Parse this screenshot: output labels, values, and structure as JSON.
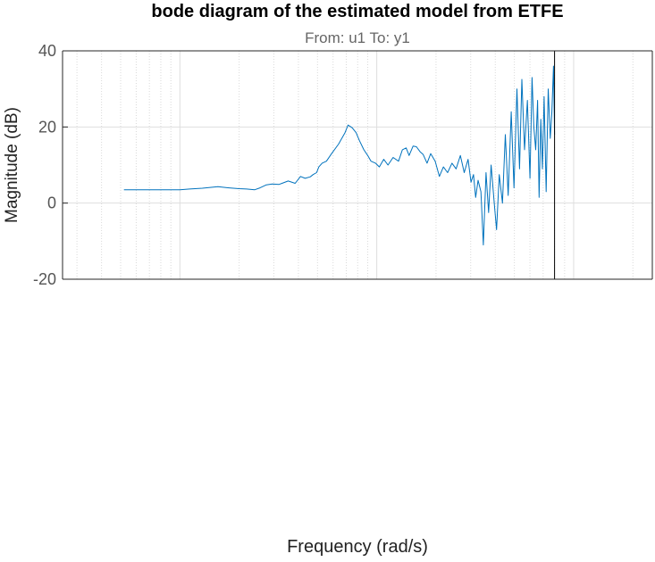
{
  "chart_data": {
    "type": "line",
    "title": "bode diagram of the estimated model from ETFE",
    "subtitle": "From: u1  To: y1",
    "xlabel": "Frequency  (rad/s)",
    "ylabel": "Magnitude (dB)",
    "xscale": "log",
    "xlim": [
      0.2535,
      251
    ],
    "ylim": [
      -20,
      40
    ],
    "yticks": [
      -20,
      0,
      20,
      40
    ],
    "ytick_labels": [
      "-20",
      "0",
      "20",
      "40"
    ],
    "grid": true,
    "nyquist_frequency": 80,
    "series": [
      {
        "color": "#0072BD",
        "x": [
          0.52,
          0.7,
          0.85,
          1.0,
          1.12,
          1.3,
          1.56,
          1.78,
          2.0,
          2.18,
          2.4,
          2.55,
          2.75,
          2.95,
          3.18,
          3.3,
          3.55,
          3.85,
          4.1,
          4.33,
          4.6,
          4.75,
          4.95,
          5.08,
          5.28,
          5.55,
          5.9,
          6.4,
          6.9,
          7.15,
          7.5,
          7.85,
          8.15,
          8.6,
          9.0,
          9.35,
          9.85,
          10.3,
          10.85,
          11.4,
          12.1,
          12.9,
          13.5,
          14.1,
          14.6,
          15.3,
          15.9,
          16.6,
          17.2,
          18.0,
          18.8,
          19.8,
          20.8,
          21.8,
          22.9,
          24.1,
          25.3,
          26.6,
          27.8,
          29.1,
          30.1,
          31.0,
          31.8,
          32.7,
          33.8,
          34.8,
          35.9,
          37.0,
          38.1,
          39.5,
          40.6,
          41.9,
          43.5,
          45.0,
          46.5,
          48.2,
          49.8,
          51.5,
          53.1,
          54.6,
          56.3,
          58.2,
          60.0,
          61.5,
          62.8,
          64.2,
          65.6,
          66.8,
          68.1,
          69.4,
          70.8,
          72.5,
          74.3,
          76.1,
          77.5,
          79.0,
          80.0
        ],
        "y": [
          3.5,
          3.5,
          3.5,
          3.5,
          3.7,
          3.9,
          4.3,
          4.0,
          3.8,
          3.7,
          3.5,
          4.0,
          4.8,
          5.0,
          4.9,
          5.2,
          5.8,
          5.2,
          7.0,
          6.5,
          6.9,
          7.5,
          8.0,
          9.5,
          10.5,
          11.0,
          13.0,
          15.5,
          18.5,
          20.5,
          19.8,
          18.5,
          16.5,
          14.0,
          12.5,
          11.0,
          10.5,
          9.5,
          11.5,
          10.0,
          12.0,
          11.0,
          14.0,
          14.5,
          12.5,
          15.0,
          14.8,
          13.5,
          12.8,
          10.5,
          13.0,
          11.0,
          7.0,
          9.5,
          8.0,
          10.5,
          9.0,
          12.5,
          8.0,
          11.5,
          5.5,
          7.5,
          1.5,
          6.0,
          3.0,
          -11.0,
          8.0,
          -2.5,
          10.0,
          0.0,
          -7.0,
          7.5,
          0.0,
          18.0,
          2.0,
          24.0,
          4.0,
          30.0,
          9.0,
          32.5,
          14.0,
          27.0,
          6.5,
          33.0,
          20.0,
          14.0,
          27.0,
          1.5,
          22.0,
          9.0,
          28.0,
          3.0,
          30.0,
          17.0,
          24.0,
          36.0,
          18.0
        ]
      }
    ]
  }
}
